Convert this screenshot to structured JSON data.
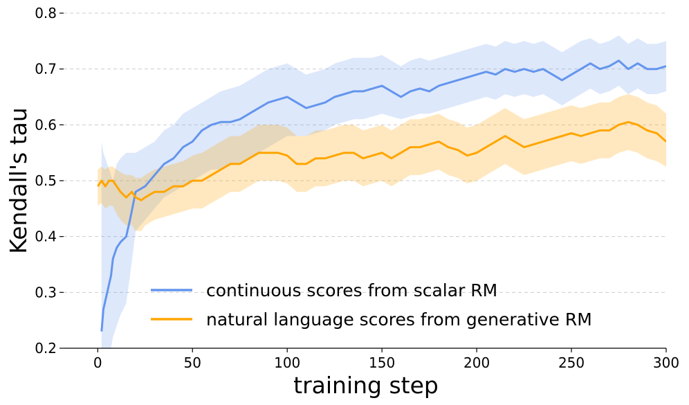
{
  "chart_data": {
    "type": "line",
    "title": "",
    "xlabel": "training step",
    "ylabel": "Kendall's tau",
    "xlim": [
      -18,
      300
    ],
    "ylim": [
      0.2,
      0.8
    ],
    "xticks": [
      0,
      50,
      100,
      150,
      200,
      250,
      300
    ],
    "yticks": [
      0.2,
      0.3,
      0.4,
      0.5,
      0.6,
      0.7,
      0.8
    ],
    "grid": "horizontal dashed",
    "legend_position": "lower-center",
    "series": [
      {
        "name": "continuous scores from scalar RM",
        "color": "#6495ED",
        "x": [
          2,
          3,
          5,
          7,
          8,
          10,
          12,
          15,
          17,
          20,
          25,
          30,
          35,
          40,
          45,
          50,
          55,
          60,
          65,
          70,
          75,
          80,
          85,
          90,
          95,
          100,
          105,
          110,
          115,
          120,
          125,
          130,
          135,
          140,
          145,
          150,
          155,
          160,
          165,
          170,
          175,
          180,
          185,
          190,
          195,
          200,
          205,
          210,
          215,
          220,
          225,
          230,
          235,
          240,
          245,
          250,
          255,
          260,
          265,
          270,
          275,
          280,
          285,
          290,
          295,
          300
        ],
        "y": [
          0.23,
          0.27,
          0.3,
          0.33,
          0.36,
          0.38,
          0.39,
          0.4,
          0.43,
          0.48,
          0.49,
          0.51,
          0.53,
          0.54,
          0.56,
          0.57,
          0.59,
          0.6,
          0.605,
          0.605,
          0.61,
          0.62,
          0.63,
          0.64,
          0.645,
          0.65,
          0.64,
          0.63,
          0.635,
          0.64,
          0.65,
          0.655,
          0.66,
          0.66,
          0.665,
          0.67,
          0.66,
          0.65,
          0.66,
          0.665,
          0.66,
          0.67,
          0.675,
          0.68,
          0.685,
          0.69,
          0.695,
          0.69,
          0.7,
          0.695,
          0.7,
          0.695,
          0.7,
          0.69,
          0.68,
          0.69,
          0.7,
          0.71,
          0.7,
          0.705,
          0.715,
          0.7,
          0.71,
          0.7,
          0.7,
          0.705
        ],
        "lower": [
          0.2,
          0.2,
          0.2,
          0.2,
          0.22,
          0.24,
          0.26,
          0.28,
          0.33,
          0.41,
          0.43,
          0.45,
          0.47,
          0.48,
          0.49,
          0.5,
          0.51,
          0.52,
          0.52,
          0.53,
          0.53,
          0.54,
          0.55,
          0.56,
          0.57,
          0.58,
          0.58,
          0.58,
          0.585,
          0.59,
          0.6,
          0.605,
          0.61,
          0.61,
          0.615,
          0.62,
          0.615,
          0.61,
          0.615,
          0.62,
          0.62,
          0.625,
          0.63,
          0.635,
          0.64,
          0.645,
          0.65,
          0.645,
          0.655,
          0.65,
          0.655,
          0.65,
          0.655,
          0.645,
          0.635,
          0.645,
          0.655,
          0.665,
          0.655,
          0.66,
          0.67,
          0.655,
          0.665,
          0.655,
          0.655,
          0.66
        ],
        "upper": [
          0.57,
          0.55,
          0.53,
          0.51,
          0.5,
          0.53,
          0.54,
          0.55,
          0.55,
          0.55,
          0.56,
          0.57,
          0.59,
          0.6,
          0.62,
          0.63,
          0.64,
          0.65,
          0.66,
          0.665,
          0.67,
          0.68,
          0.69,
          0.7,
          0.705,
          0.71,
          0.7,
          0.69,
          0.695,
          0.7,
          0.71,
          0.715,
          0.72,
          0.72,
          0.72,
          0.725,
          0.715,
          0.705,
          0.715,
          0.72,
          0.715,
          0.72,
          0.725,
          0.73,
          0.735,
          0.74,
          0.745,
          0.74,
          0.75,
          0.745,
          0.75,
          0.745,
          0.75,
          0.74,
          0.73,
          0.74,
          0.75,
          0.755,
          0.745,
          0.75,
          0.76,
          0.745,
          0.755,
          0.745,
          0.745,
          0.75
        ]
      },
      {
        "name": "natural language scores from generative RM",
        "color": "#FFA500",
        "x": [
          0,
          2,
          4,
          6,
          8,
          10,
          12,
          15,
          18,
          20,
          23,
          25,
          30,
          35,
          40,
          45,
          50,
          55,
          60,
          65,
          70,
          75,
          80,
          85,
          90,
          95,
          100,
          105,
          110,
          115,
          120,
          125,
          130,
          135,
          140,
          145,
          150,
          155,
          160,
          165,
          170,
          175,
          180,
          185,
          190,
          195,
          200,
          205,
          210,
          215,
          220,
          225,
          230,
          235,
          240,
          245,
          250,
          255,
          260,
          265,
          270,
          275,
          280,
          285,
          290,
          295,
          300
        ],
        "y": [
          0.49,
          0.5,
          0.49,
          0.5,
          0.5,
          0.49,
          0.48,
          0.47,
          0.48,
          0.47,
          0.465,
          0.47,
          0.48,
          0.48,
          0.49,
          0.49,
          0.5,
          0.5,
          0.51,
          0.52,
          0.53,
          0.53,
          0.54,
          0.55,
          0.55,
          0.55,
          0.545,
          0.53,
          0.53,
          0.54,
          0.54,
          0.545,
          0.55,
          0.55,
          0.54,
          0.545,
          0.55,
          0.54,
          0.55,
          0.56,
          0.56,
          0.565,
          0.57,
          0.56,
          0.555,
          0.545,
          0.55,
          0.56,
          0.57,
          0.58,
          0.57,
          0.56,
          0.565,
          0.57,
          0.575,
          0.58,
          0.585,
          0.58,
          0.585,
          0.59,
          0.59,
          0.6,
          0.605,
          0.6,
          0.59,
          0.585,
          0.57
        ],
        "lower": [
          0.455,
          0.46,
          0.45,
          0.455,
          0.455,
          0.44,
          0.43,
          0.42,
          0.42,
          0.41,
          0.41,
          0.42,
          0.43,
          0.435,
          0.44,
          0.445,
          0.45,
          0.45,
          0.46,
          0.47,
          0.48,
          0.48,
          0.49,
          0.5,
          0.5,
          0.5,
          0.495,
          0.48,
          0.48,
          0.49,
          0.49,
          0.495,
          0.5,
          0.5,
          0.49,
          0.495,
          0.5,
          0.49,
          0.5,
          0.51,
          0.51,
          0.515,
          0.52,
          0.51,
          0.505,
          0.495,
          0.5,
          0.51,
          0.52,
          0.53,
          0.52,
          0.51,
          0.515,
          0.52,
          0.525,
          0.53,
          0.535,
          0.53,
          0.535,
          0.54,
          0.54,
          0.55,
          0.555,
          0.55,
          0.54,
          0.535,
          0.525
        ],
        "upper": [
          0.52,
          0.525,
          0.52,
          0.525,
          0.525,
          0.52,
          0.515,
          0.51,
          0.51,
          0.505,
          0.505,
          0.51,
          0.52,
          0.525,
          0.53,
          0.535,
          0.545,
          0.55,
          0.56,
          0.57,
          0.58,
          0.58,
          0.59,
          0.6,
          0.6,
          0.6,
          0.595,
          0.58,
          0.58,
          0.59,
          0.59,
          0.595,
          0.6,
          0.6,
          0.59,
          0.595,
          0.6,
          0.59,
          0.6,
          0.61,
          0.61,
          0.615,
          0.62,
          0.61,
          0.605,
          0.595,
          0.6,
          0.61,
          0.62,
          0.63,
          0.62,
          0.61,
          0.615,
          0.62,
          0.625,
          0.63,
          0.635,
          0.63,
          0.635,
          0.64,
          0.64,
          0.65,
          0.655,
          0.65,
          0.64,
          0.635,
          0.62
        ]
      }
    ]
  }
}
